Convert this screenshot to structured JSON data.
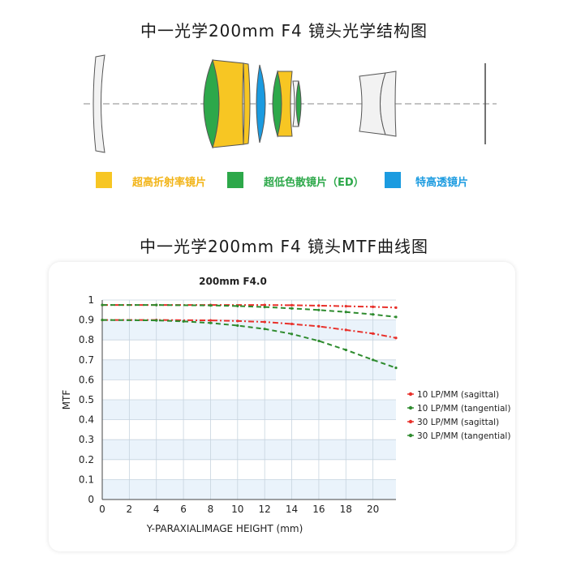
{
  "page": {
    "title_structure": "中一光学200mm F4 镜头光学结构图",
    "title_mtf": "中一光学200mm F4 镜头MTF曲线图"
  },
  "lens_legend": [
    {
      "label": "超高折射率镜片",
      "color": "#f7c623",
      "text_color": "#f2b417"
    },
    {
      "label": "超低色散镜片（ED）",
      "color": "#2da84a",
      "text_color": "#2da84a"
    },
    {
      "label": "特高透镜片",
      "color": "#1b9be0",
      "text_color": "#1b9be0"
    }
  ],
  "chart_data": {
    "type": "line",
    "title": "200mm F4.0",
    "xlabel": "Y-PARAXIALIMAGE HEIGHT (mm)",
    "ylabel": "MTF",
    "xlim": [
      0,
      21.7
    ],
    "ylim": [
      0,
      1
    ],
    "x_ticks": [
      "0",
      "2",
      "4",
      "6",
      "8",
      "10",
      "12",
      "14",
      "16",
      "18",
      "20"
    ],
    "y_ticks": [
      "0",
      "0.1",
      "0.2",
      "0.3",
      "0.4",
      "0.5",
      "0.6",
      "0.7",
      "0.8",
      "0.9",
      "1"
    ],
    "grid": true,
    "legend_position": "right",
    "series": [
      {
        "name": "10 LP/MM (sagittal)",
        "color": "#e8302a",
        "dash": "dashdot",
        "x": [
          0,
          4,
          8,
          12,
          14,
          16,
          18,
          20,
          21.7
        ],
        "y": [
          0.975,
          0.975,
          0.975,
          0.975,
          0.974,
          0.972,
          0.969,
          0.966,
          0.962
        ]
      },
      {
        "name": "10 LP/MM (tangential)",
        "color": "#2e8b2e",
        "dash": "dashed",
        "x": [
          0,
          4,
          8,
          10,
          12,
          14,
          16,
          18,
          20,
          21.7
        ],
        "y": [
          0.975,
          0.975,
          0.973,
          0.97,
          0.965,
          0.958,
          0.95,
          0.94,
          0.928,
          0.915
        ]
      },
      {
        "name": "30 LP/MM (sagittal)",
        "color": "#e8302a",
        "dash": "dashdot",
        "x": [
          0,
          4,
          8,
          10,
          12,
          14,
          16,
          18,
          20,
          21.7
        ],
        "y": [
          0.9,
          0.9,
          0.898,
          0.895,
          0.89,
          0.88,
          0.868,
          0.85,
          0.832,
          0.81
        ]
      },
      {
        "name": "30 LP/MM (tangential)",
        "color": "#2e8b2e",
        "dash": "dashed",
        "x": [
          0,
          4,
          6,
          8,
          10,
          12,
          14,
          16,
          18,
          20,
          21.7
        ],
        "y": [
          0.9,
          0.898,
          0.893,
          0.885,
          0.872,
          0.855,
          0.83,
          0.795,
          0.75,
          0.7,
          0.66
        ]
      }
    ]
  }
}
